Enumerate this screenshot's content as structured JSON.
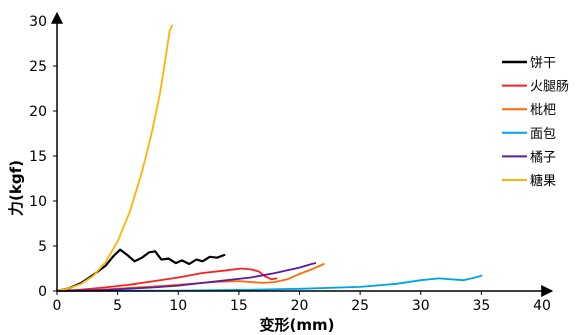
{
  "chart_data": {
    "type": "line",
    "xlabel": "变形(mm)",
    "ylabel": "力(kgf)",
    "xlim": [
      0,
      40
    ],
    "ylim": [
      0,
      30
    ],
    "xticks": [
      0,
      5,
      10,
      15,
      20,
      25,
      30,
      35,
      40
    ],
    "yticks": [
      0,
      5,
      10,
      15,
      20,
      25,
      30
    ],
    "grid": false,
    "legend_position": "right",
    "series": [
      {
        "name": "饼干",
        "color": "#000000",
        "points": [
          [
            0,
            0
          ],
          [
            1,
            0.3
          ],
          [
            2,
            0.9
          ],
          [
            3,
            1.8
          ],
          [
            4,
            2.8
          ],
          [
            4.6,
            3.8
          ],
          [
            5.2,
            4.6
          ],
          [
            5.8,
            4.0
          ],
          [
            6.4,
            3.3
          ],
          [
            7,
            3.7
          ],
          [
            7.6,
            4.3
          ],
          [
            8.1,
            4.4
          ],
          [
            8.6,
            3.5
          ],
          [
            9.2,
            3.6
          ],
          [
            9.8,
            3.1
          ],
          [
            10.3,
            3.4
          ],
          [
            10.9,
            3.0
          ],
          [
            11.5,
            3.5
          ],
          [
            12,
            3.3
          ],
          [
            12.6,
            3.8
          ],
          [
            13.2,
            3.7
          ],
          [
            13.8,
            4.0
          ]
        ]
      },
      {
        "name": "火腿肠",
        "color": "#ff1f1f",
        "points": [
          [
            0,
            0
          ],
          [
            2,
            0.15
          ],
          [
            4,
            0.4
          ],
          [
            6,
            0.7
          ],
          [
            8,
            1.1
          ],
          [
            10,
            1.5
          ],
          [
            12,
            2.0
          ],
          [
            14,
            2.3
          ],
          [
            15.2,
            2.5
          ],
          [
            16,
            2.4
          ],
          [
            16.6,
            2.2
          ],
          [
            17.2,
            1.6
          ],
          [
            17.7,
            1.3
          ],
          [
            18.1,
            1.4
          ]
        ]
      },
      {
        "name": "枇杷",
        "color": "#ff6a00",
        "points": [
          [
            0,
            0
          ],
          [
            3,
            0.1
          ],
          [
            6,
            0.35
          ],
          [
            9,
            0.6
          ],
          [
            12,
            0.9
          ],
          [
            13,
            1.0
          ],
          [
            15,
            1.1
          ],
          [
            17,
            0.9
          ],
          [
            18,
            1.0
          ],
          [
            19,
            1.3
          ],
          [
            20,
            1.9
          ],
          [
            21,
            2.4
          ],
          [
            22,
            3.0
          ]
        ]
      },
      {
        "name": "面包",
        "color": "#00a3e8",
        "points": [
          [
            0,
            0
          ],
          [
            5,
            0.02
          ],
          [
            10,
            0.05
          ],
          [
            15,
            0.12
          ],
          [
            20,
            0.25
          ],
          [
            25,
            0.45
          ],
          [
            28,
            0.8
          ],
          [
            30,
            1.2
          ],
          [
            31.5,
            1.4
          ],
          [
            32.5,
            1.3
          ],
          [
            33.5,
            1.2
          ],
          [
            34.5,
            1.5
          ],
          [
            35,
            1.7
          ]
        ]
      },
      {
        "name": "橘子",
        "color": "#5a1ba3",
        "points": [
          [
            0,
            0
          ],
          [
            4,
            0.12
          ],
          [
            8,
            0.4
          ],
          [
            10,
            0.6
          ],
          [
            12,
            0.9
          ],
          [
            14,
            1.2
          ],
          [
            16,
            1.5
          ],
          [
            18,
            2.0
          ],
          [
            19,
            2.3
          ],
          [
            20,
            2.6
          ],
          [
            21,
            3.0
          ],
          [
            21.3,
            3.1
          ]
        ]
      },
      {
        "name": "糖果",
        "color": "#ffb400",
        "points": [
          [
            0,
            0
          ],
          [
            1,
            0.3
          ],
          [
            2,
            0.8
          ],
          [
            3,
            1.7
          ],
          [
            4,
            3.2
          ],
          [
            5,
            5.5
          ],
          [
            6,
            8.8
          ],
          [
            7,
            13.2
          ],
          [
            7.8,
            17.5
          ],
          [
            8.5,
            22.0
          ],
          [
            9.0,
            26.3
          ],
          [
            9.3,
            29.0
          ],
          [
            9.5,
            29.5
          ]
        ]
      }
    ]
  }
}
